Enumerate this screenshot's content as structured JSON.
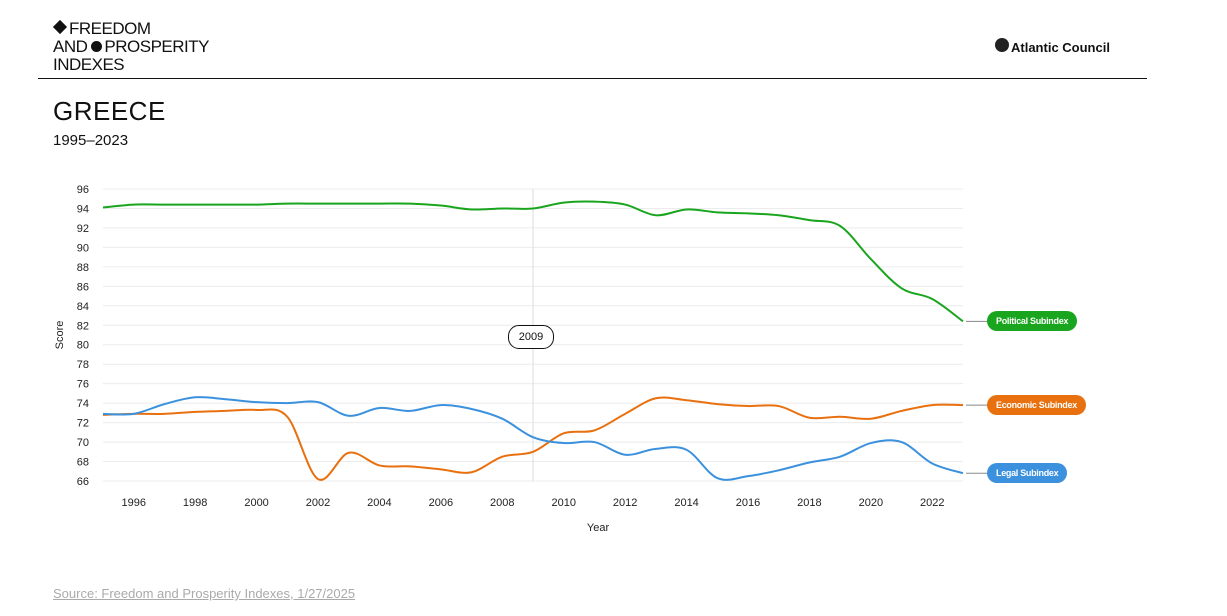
{
  "header": {
    "logo_line1": "FREEDOM",
    "logo_line2a": "AND",
    "logo_line2b": "PROSPERITY",
    "logo_line3": "INDEXES",
    "brand": "Atlantic Council"
  },
  "title": "GREECE",
  "subtitle": "1995–2023",
  "tooltip": "2009",
  "source": "Source: Freedom and Prosperity Indexes, 1/27/2025",
  "chart_data": {
    "type": "line",
    "xlabel": "Year",
    "ylabel": "Score",
    "xlim": [
      1995,
      2023
    ],
    "ylim": [
      66,
      96
    ],
    "yticks": [
      66,
      68,
      70,
      72,
      74,
      76,
      78,
      80,
      82,
      84,
      86,
      88,
      90,
      92,
      94,
      96
    ],
    "xticks": [
      1996,
      1998,
      2000,
      2002,
      2004,
      2006,
      2008,
      2010,
      2012,
      2014,
      2016,
      2018,
      2020,
      2022
    ],
    "grid": true,
    "highlight_x": 2009,
    "x": [
      1995,
      1996,
      1997,
      1998,
      1999,
      2000,
      2001,
      2002,
      2003,
      2004,
      2005,
      2006,
      2007,
      2008,
      2009,
      2010,
      2011,
      2012,
      2013,
      2014,
      2015,
      2016,
      2017,
      2018,
      2019,
      2020,
      2021,
      2022,
      2023
    ],
    "series": [
      {
        "name": "Political Subindex",
        "color": "#1aa51e",
        "values": [
          94.1,
          94.4,
          94.4,
          94.4,
          94.4,
          94.4,
          94.5,
          94.5,
          94.5,
          94.5,
          94.5,
          94.3,
          93.9,
          94.0,
          94.0,
          94.6,
          94.7,
          94.4,
          93.3,
          93.9,
          93.6,
          93.5,
          93.3,
          92.8,
          92.2,
          88.8,
          85.8,
          84.7,
          82.4
        ]
      },
      {
        "name": "Economic Subindex",
        "color": "#e8700f",
        "values": [
          72.8,
          72.9,
          72.9,
          73.1,
          73.2,
          73.3,
          72.6,
          66.2,
          68.9,
          67.6,
          67.5,
          67.2,
          66.9,
          68.5,
          69.0,
          70.9,
          71.2,
          72.9,
          74.5,
          74.3,
          73.9,
          73.7,
          73.7,
          72.5,
          72.6,
          72.4,
          73.2,
          73.8,
          73.8
        ]
      },
      {
        "name": "Legal Subindex",
        "color": "#3b91dd",
        "values": [
          72.9,
          72.9,
          73.9,
          74.6,
          74.4,
          74.1,
          74.0,
          74.1,
          72.7,
          73.5,
          73.2,
          73.8,
          73.4,
          72.4,
          70.5,
          69.9,
          70.0,
          68.7,
          69.3,
          69.2,
          66.3,
          66.5,
          67.1,
          67.9,
          68.5,
          69.9,
          70.0,
          67.8,
          66.8
        ]
      }
    ]
  }
}
